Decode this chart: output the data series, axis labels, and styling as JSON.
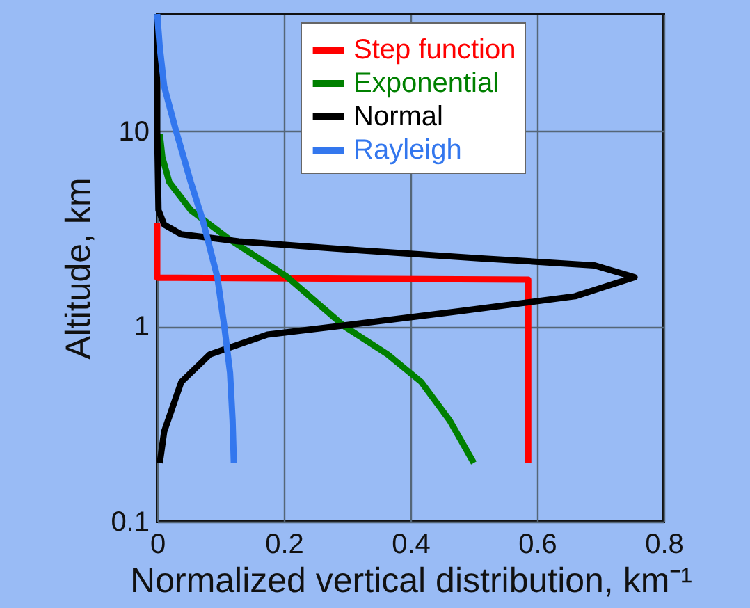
{
  "chart_data": {
    "type": "line",
    "xlabel": "Normalized vertical distribution, km⁻¹",
    "ylabel": "Altitude, km",
    "log": "y",
    "xlim": [
      0,
      0.8
    ],
    "xticks": [
      0,
      0.2,
      0.4,
      0.6,
      0.8
    ],
    "ylim": [
      0.1,
      40
    ],
    "yticks": [
      0.1,
      1,
      10
    ],
    "grid": true,
    "legend": "top right",
    "line_style": "solid",
    "marker": "none",
    "series": [
      {
        "name": "Step function",
        "color": "#ff0000",
        "x": [
          0.586,
          0.586,
          0,
          0
        ],
        "values": [
          0.2,
          1.74,
          1.78,
          3.4
        ]
      },
      {
        "name": "Exponential",
        "color": "#008000",
        "x": [
          0.5,
          0.462,
          0.417,
          0.364,
          0.296,
          0.205,
          0.114,
          0.053,
          0.019,
          0.008,
          0.004
        ],
        "values": [
          0.2,
          0.33,
          0.52,
          0.72,
          1.0,
          1.8,
          2.8,
          3.95,
          5.5,
          7.4,
          9.7
        ]
      },
      {
        "name": "Normal",
        "color": "#000000",
        "x": [
          0.004,
          0.011,
          0.038,
          0.083,
          0.174,
          0.28,
          0.478,
          0.66,
          0.754,
          0.69,
          0.508,
          0.28,
          0.129,
          0.038,
          0.011,
          0.002,
          0,
          0
        ],
        "values": [
          0.2,
          0.29,
          0.52,
          0.72,
          0.91,
          1.0,
          1.2,
          1.43,
          1.79,
          2.06,
          2.24,
          2.51,
          2.73,
          2.97,
          3.33,
          3.95,
          10,
          40
        ]
      },
      {
        "name": "Rayleigh",
        "color": "#3377ee",
        "x": [
          0.121,
          0.119,
          0.115,
          0.106,
          0.095,
          0.072,
          0.053,
          0.03,
          0.011,
          0.004,
          0
        ],
        "values": [
          0.2,
          0.33,
          0.58,
          1.0,
          1.79,
          3.5,
          5.5,
          10,
          17,
          27,
          40
        ]
      }
    ]
  }
}
